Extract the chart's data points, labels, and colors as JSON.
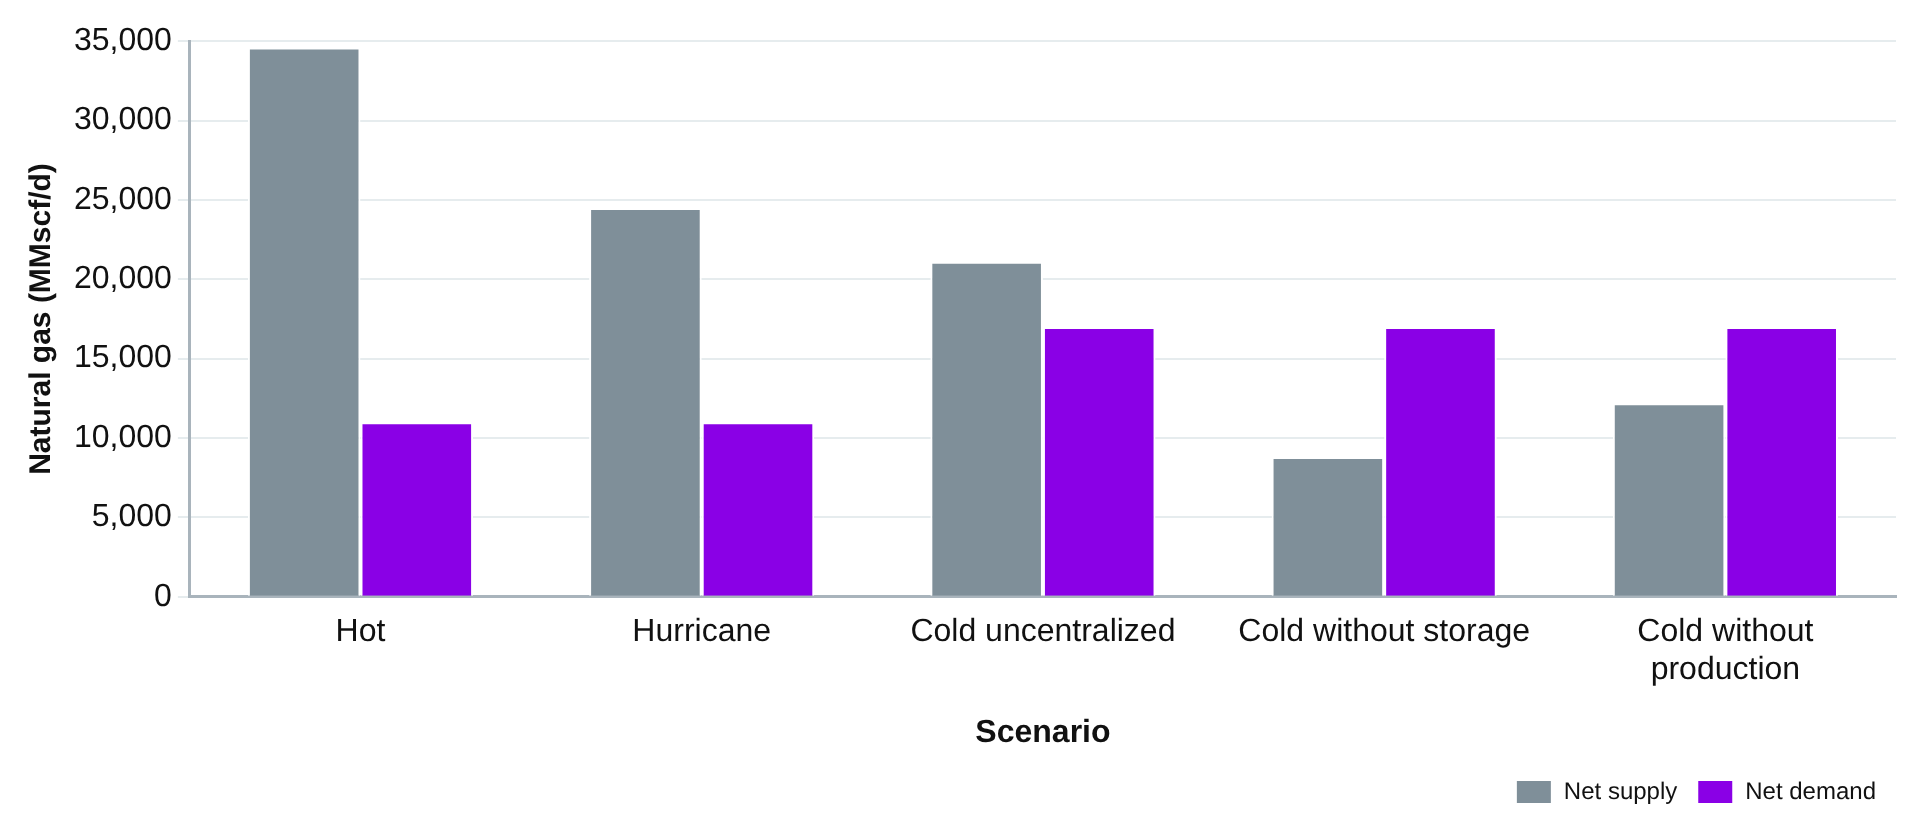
{
  "chart_data": {
    "type": "bar",
    "xlabel": "Scenario",
    "ylabel": "Natural gas (MMscf/d)",
    "categories": [
      "Hot",
      "Hurricane",
      "Cold uncentralized",
      "Cold without storage",
      "Cold without production"
    ],
    "series": [
      {
        "name": "Net supply",
        "color": "#7f8f99",
        "values": [
          34600,
          24500,
          21100,
          8800,
          12200
        ]
      },
      {
        "name": "Net demand",
        "color": "#8a00e6",
        "values": [
          11000,
          11000,
          17000,
          17000,
          17000
        ]
      }
    ],
    "ylim": [
      0,
      35000
    ],
    "yticks": [
      {
        "value": 0,
        "label": "0"
      },
      {
        "value": 5000,
        "label": "5,000"
      },
      {
        "value": 10000,
        "label": "10,000"
      },
      {
        "value": 15000,
        "label": "15,000"
      },
      {
        "value": 20000,
        "label": "20,000"
      },
      {
        "value": 25000,
        "label": "25,000"
      },
      {
        "value": 30000,
        "label": "30,000"
      },
      {
        "value": 35000,
        "label": "35,000"
      }
    ],
    "grid": "y",
    "legend": "bottom right"
  }
}
